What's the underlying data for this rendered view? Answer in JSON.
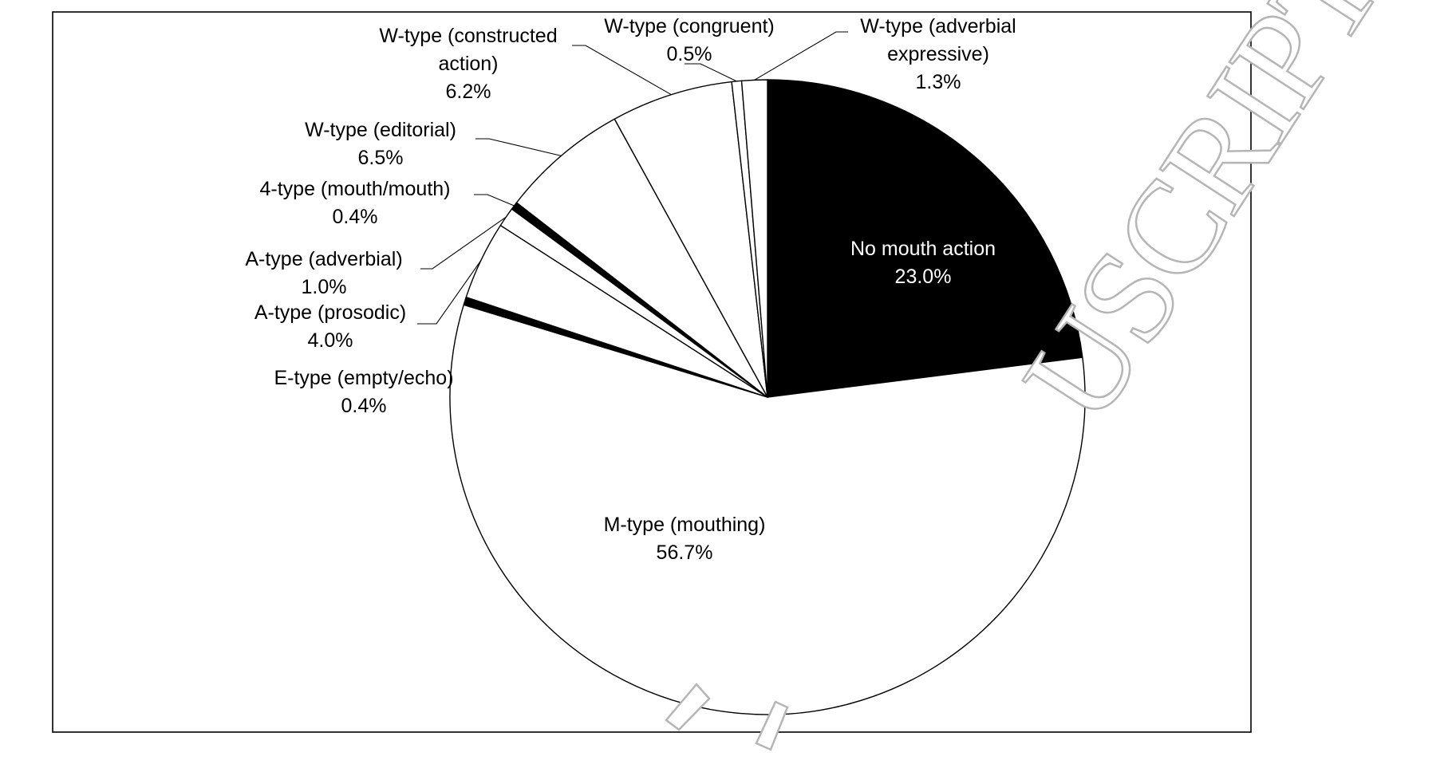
{
  "watermark": "ACCEPTED MANUSCRIPT",
  "watermark_visible": "USCRIPT",
  "chart_data": {
    "type": "pie",
    "title": "",
    "start_angle_deg": 90,
    "direction": "clockwise",
    "colors": {
      "fill_white": "#ffffff",
      "fill_black": "#000000",
      "stroke": "#000000",
      "watermark": "#b5b5b5"
    },
    "slices": [
      {
        "id": "no-mouth-action",
        "name": "No mouth action",
        "value": 23.0,
        "display": "23.0%",
        "fill": "#000000",
        "label_color": "#ffffff",
        "label_style": "inside",
        "lines": [
          "No mouth action",
          "23.0%"
        ]
      },
      {
        "id": "m-type-mouthing",
        "name": "M-type (mouthing)",
        "value": 56.7,
        "display": "56.7%",
        "fill": "#ffffff",
        "label_color": "#000000",
        "label_style": "inside",
        "lines": [
          "M-type (mouthing)",
          "56.7%"
        ]
      },
      {
        "id": "e-type-empty-echo",
        "name": "E-type (empty/echo)",
        "value": 0.4,
        "display": "0.4%",
        "fill": "#000000",
        "label_color": "#000000",
        "label_style": "outside",
        "lines": [
          "E-type (empty/echo)",
          "0.4%"
        ]
      },
      {
        "id": "a-type-prosodic",
        "name": "A-type (prosodic)",
        "value": 4.0,
        "display": "4.0%",
        "fill": "#ffffff",
        "label_color": "#000000",
        "label_style": "outside",
        "lines": [
          "A-type (prosodic)",
          "4.0%"
        ]
      },
      {
        "id": "a-type-adverbial",
        "name": "A-type (adverbial)",
        "value": 1.0,
        "display": "1.0%",
        "fill": "#ffffff",
        "label_color": "#000000",
        "label_style": "outside",
        "lines": [
          "A-type (adverbial)",
          "1.0%"
        ]
      },
      {
        "id": "4-type-mouth-mouth",
        "name": "4-type (mouth/mouth)",
        "value": 0.4,
        "display": "0.4%",
        "fill": "#000000",
        "label_color": "#000000",
        "label_style": "outside",
        "lines": [
          "4-type (mouth/mouth)",
          "0.4%"
        ]
      },
      {
        "id": "w-type-editorial",
        "name": "W-type (editorial)",
        "value": 6.5,
        "display": "6.5%",
        "fill": "#ffffff",
        "label_color": "#000000",
        "label_style": "outside",
        "lines": [
          "W-type (editorial)",
          "6.5%"
        ]
      },
      {
        "id": "w-type-constructed-action",
        "name": "W-type (constructed action)",
        "value": 6.2,
        "display": "6.2%",
        "fill": "#ffffff",
        "label_color": "#000000",
        "label_style": "outside",
        "lines": [
          "W-type (constructed",
          "action)",
          "6.2%"
        ]
      },
      {
        "id": "w-type-congruent",
        "name": "W-type (congruent)",
        "value": 0.5,
        "display": "0.5%",
        "fill": "#ffffff",
        "label_color": "#000000",
        "label_style": "outside",
        "lines": [
          "W-type (congruent)",
          "0.5%"
        ]
      },
      {
        "id": "w-type-adverbial-expressive",
        "name": "W-type (adverbial expressive)",
        "value": 1.3,
        "display": "1.3%",
        "fill": "#ffffff",
        "label_color": "#000000",
        "label_style": "outside",
        "lines": [
          "W-type (adverbial",
          "expressive)",
          "1.3%"
        ]
      }
    ]
  }
}
